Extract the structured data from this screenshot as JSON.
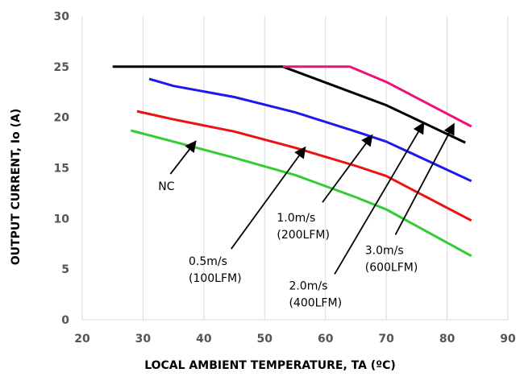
{
  "chart_data": {
    "type": "line",
    "xlabel": "LOCAL AMBIENT TEMPERATURE, TA (ºC)",
    "ylabel": "OUTPUT CURRENT, Io (A)",
    "xlim": [
      20,
      90
    ],
    "ylim": [
      0,
      30
    ],
    "xticks": [
      20,
      30,
      40,
      50,
      60,
      70,
      80,
      90
    ],
    "yticks": [
      0,
      5,
      10,
      15,
      20,
      25,
      30
    ],
    "x_tick_labels": [
      "20",
      "30",
      "40",
      "50",
      "60",
      "70",
      "80",
      "90"
    ],
    "y_tick_labels": [
      "0",
      "5",
      "10",
      "15",
      "20",
      "25",
      "30"
    ],
    "grid": "vertical",
    "legend": "none",
    "series": [
      {
        "color": "#33cc33",
        "x": [
          28,
          35,
          45,
          55,
          65,
          70,
          84
        ],
        "y": [
          18.7,
          17.6,
          16.0,
          14.3,
          12.1,
          10.9,
          6.3
        ]
      },
      {
        "color": "#ee1111",
        "x": [
          29,
          35,
          45,
          55,
          65,
          70,
          84
        ],
        "y": [
          20.6,
          19.8,
          18.6,
          17.0,
          15.2,
          14.2,
          9.8
        ]
      },
      {
        "color": "#1a1aee",
        "x": [
          31,
          35,
          45,
          55,
          65,
          70,
          84
        ],
        "y": [
          23.8,
          23.1,
          22.0,
          20.5,
          18.6,
          17.6,
          13.7
        ]
      },
      {
        "color": "#000000",
        "x": [
          25,
          53,
          70,
          83
        ],
        "y": [
          25,
          25,
          21.2,
          17.5
        ]
      },
      {
        "color": "#ee1177",
        "x": [
          53,
          64,
          70,
          84
        ],
        "y": [
          25,
          25,
          23.5,
          19.1
        ]
      }
    ],
    "annotations": [
      {
        "lines": [
          "NC"
        ],
        "tx": 32.5,
        "ty": 12.8,
        "ax1": 34.5,
        "ay1": 14.4,
        "ax2": 38.5,
        "ay2": 17.5
      },
      {
        "lines": [
          "0.5m/s",
          "(100LFM)"
        ],
        "tx": 37.5,
        "ty": 5.4,
        "ax1": 44.5,
        "ay1": 7.0,
        "ax2": 56.5,
        "ay2": 16.9
      },
      {
        "lines": [
          "1.0m/s",
          "(200LFM)"
        ],
        "tx": 52,
        "ty": 9.7,
        "ax1": 59.5,
        "ay1": 11.6,
        "ax2": 67.5,
        "ay2": 18.1
      },
      {
        "lines": [
          "2.0m/s",
          "(400LFM)"
        ],
        "tx": 54,
        "ty": 3.0,
        "ax1": 61.5,
        "ay1": 4.5,
        "ax2": 76,
        "ay2": 19.3
      },
      {
        "lines": [
          "3.0m/s",
          "(600LFM)"
        ],
        "tx": 66.5,
        "ty": 6.5,
        "ax1": 71.5,
        "ay1": 8.4,
        "ax2": 81,
        "ay2": 19.2
      }
    ]
  }
}
